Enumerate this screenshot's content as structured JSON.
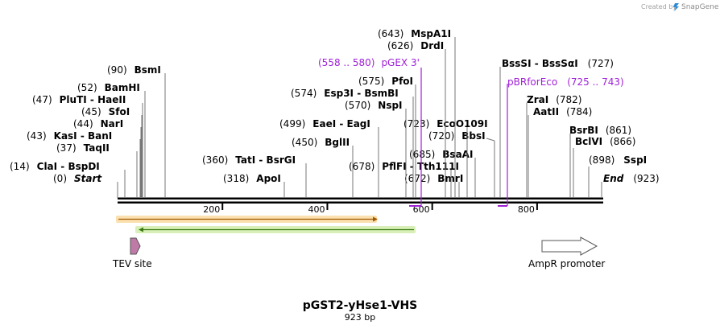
{
  "watermark": {
    "text": "Created by",
    "brand": "SnapGene"
  },
  "map": {
    "title": "pGST2-yHse1-VHS",
    "length_label": "923 bp",
    "length": 923
  },
  "ruler": {
    "ticks": [
      200,
      400,
      600,
      800
    ]
  },
  "sites": [
    {
      "pos": "(898)",
      "name": "SspI",
      "bp": 898
    },
    {
      "pos": "(866)",
      "name": "BclVI",
      "bp": 866
    },
    {
      "pos": "(861)",
      "name": "BsrBI",
      "bp": 861
    },
    {
      "pos": "(784)",
      "name": "AatII",
      "bp": 784
    },
    {
      "pos": "(782)",
      "name": "ZraI",
      "bp": 782
    },
    {
      "pos": "(727)",
      "name": "BssSI - BssSαI",
      "bp": 727,
      "pos_right": true
    },
    {
      "pos": "(720)",
      "name": "BbsI",
      "bp": 720
    },
    {
      "pos": "(685)",
      "name": "BsaAI",
      "bp": 685
    },
    {
      "pos": "(723)",
      "name": "EcoO109I",
      "bp": 723
    },
    {
      "pos": "(672)",
      "name": "BmrI",
      "bp": 672
    },
    {
      "pos": "(678)",
      "name": "PflFI - Tth111I",
      "bp": 678
    },
    {
      "pos": "(643)",
      "name": "MspA1I",
      "bp": 643
    },
    {
      "pos": "(626)",
      "name": "DrdI",
      "bp": 626
    },
    {
      "pos": "(575)",
      "name": "PfoI",
      "bp": 575
    },
    {
      "pos": "(574)",
      "name": "Esp3I - BsmBI",
      "bp": 574
    },
    {
      "pos": "(570)",
      "name": "NspI",
      "bp": 570
    },
    {
      "pos": "(499)",
      "name": "EaeI - EagI",
      "bp": 499
    },
    {
      "pos": "(450)",
      "name": "BglII",
      "bp": 450
    },
    {
      "pos": "(360)",
      "name": "TatI - BsrGI",
      "bp": 360
    },
    {
      "pos": "(318)",
      "name": "ApoI",
      "bp": 318
    },
    {
      "pos": "(90)",
      "name": "BsmI",
      "bp": 90
    },
    {
      "pos": "(52)",
      "name": "BamHI",
      "bp": 52
    },
    {
      "pos": "(47)",
      "name": "PluTI - HaeII",
      "bp": 47
    },
    {
      "pos": "(45)",
      "name": "SfoI",
      "bp": 45
    },
    {
      "pos": "(44)",
      "name": "NarI",
      "bp": 44
    },
    {
      "pos": "(43)",
      "name": "KasI - BanI",
      "bp": 43
    },
    {
      "pos": "(37)",
      "name": "TaqII",
      "bp": 37
    },
    {
      "pos": "(14)",
      "name": "ClaI - BspDI",
      "bp": 14
    },
    {
      "pos": "(0)",
      "name": "Start",
      "bp": 0
    },
    {
      "pos": "(923)",
      "name": "End",
      "bp": 923,
      "pos_right": true
    }
  ],
  "primers": [
    {
      "name": "pGEX 3'",
      "range": "(558 .. 580)",
      "start": 558,
      "end": 580,
      "direction": "reverse"
    },
    {
      "name": "pBRforEco",
      "range": "(725 .. 743)",
      "start": 725,
      "end": 743,
      "direction": "reverse"
    }
  ],
  "features": [
    {
      "name": "TEV site",
      "color": "#c07aa8",
      "direction": "forward"
    },
    {
      "name": "AmpR promoter",
      "color": "#ffffff",
      "direction": "forward"
    }
  ],
  "orfs": [
    {
      "name": "orf-forward",
      "color": "#f0a020",
      "direction": "forward"
    },
    {
      "name": "orf-reverse",
      "color": "#7cc040",
      "direction": "reverse"
    }
  ]
}
